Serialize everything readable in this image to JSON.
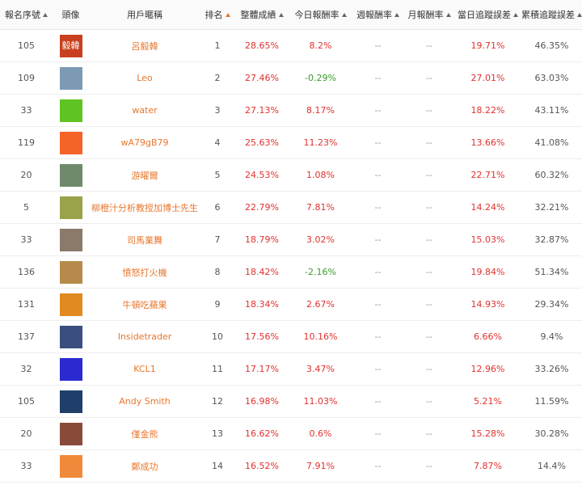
{
  "table": {
    "headers": [
      "報名序號",
      "頭像",
      "用戶暱稱",
      "排名",
      "整體成績",
      "今日報酬率",
      "週報酬率",
      "月報酬率",
      "當日追蹤誤差",
      "累積追蹤誤差"
    ],
    "rows": [
      [
        "105",
        "毅韓",
        "呂毅韓",
        "1",
        "28.65%",
        "8.2%",
        "--",
        "--",
        "19.71%",
        "46.35%"
      ],
      [
        "109",
        null,
        "Leo",
        "2",
        "27.46%",
        "-0.29%",
        "--",
        "--",
        "27.01%",
        "63.03%"
      ],
      [
        "33",
        null,
        "water",
        "3",
        "27.13%",
        "8.17%",
        "--",
        "--",
        "18.22%",
        "43.11%"
      ],
      [
        "119",
        null,
        "wA79gB79",
        "4",
        "25.63%",
        "11.23%",
        "--",
        "--",
        "13.66%",
        "41.08%"
      ],
      [
        "20",
        null,
        "游曜爾",
        "5",
        "24.53%",
        "1.08%",
        "--",
        "--",
        "22.71%",
        "60.32%"
      ],
      [
        "5",
        null,
        "柳橙汁分析教授加博士先生",
        "6",
        "22.79%",
        "7.81%",
        "--",
        "--",
        "14.24%",
        "32.21%"
      ],
      [
        "33",
        null,
        "司馬業舞",
        "7",
        "18.79%",
        "3.02%",
        "--",
        "--",
        "15.03%",
        "32.87%"
      ],
      [
        "136",
        null,
        "憤怒打火機",
        "8",
        "18.42%",
        "-2.16%",
        "--",
        "--",
        "19.84%",
        "51.34%"
      ],
      [
        "131",
        null,
        "牛頓吃蘋果",
        "9",
        "18.34%",
        "2.67%",
        "--",
        "--",
        "14.93%",
        "29.34%"
      ],
      [
        "137",
        null,
        "Insidetrader",
        "10",
        "17.56%",
        "10.16%",
        "--",
        "--",
        "6.66%",
        "9.4%"
      ],
      [
        "32",
        null,
        "KCL1",
        "11",
        "17.17%",
        "3.47%",
        "--",
        "--",
        "12.96%",
        "33.26%"
      ],
      [
        "105",
        null,
        "Andy Smith",
        "12",
        "16.98%",
        "11.03%",
        "--",
        "--",
        "5.21%",
        "11.59%"
      ],
      [
        "20",
        null,
        "僅金熊",
        "13",
        "16.62%",
        "0.6%",
        "--",
        "--",
        "15.28%",
        "30.28%"
      ],
      [
        "33",
        null,
        "鄭成功",
        "14",
        "16.52%",
        "7.91%",
        "--",
        "--",
        "7.87%",
        "14.4%"
      ]
    ]
  }
}
